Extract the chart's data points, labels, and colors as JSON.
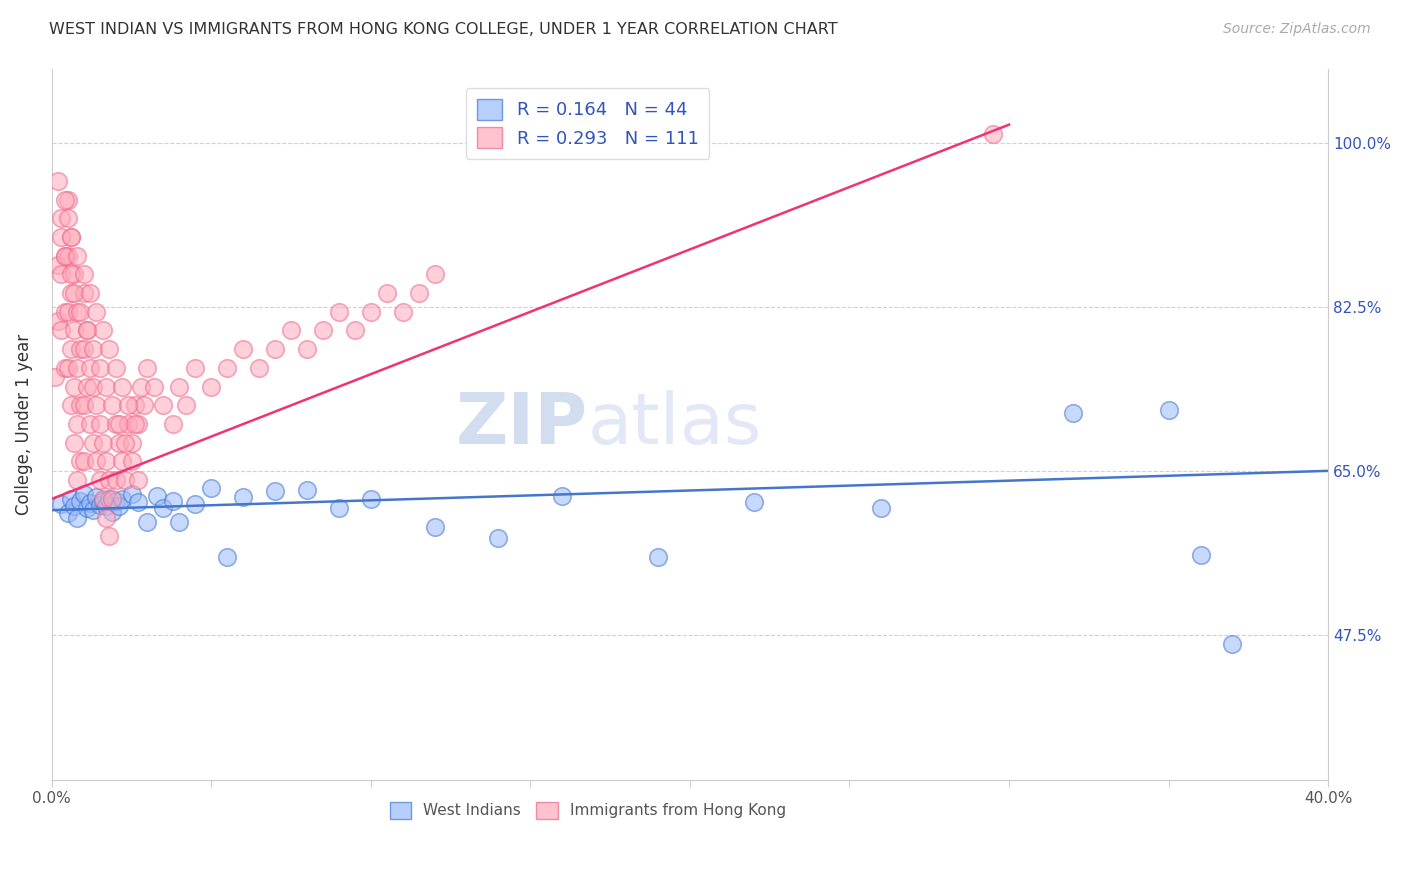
{
  "title": "WEST INDIAN VS IMMIGRANTS FROM HONG KONG COLLEGE, UNDER 1 YEAR CORRELATION CHART",
  "source": "Source: ZipAtlas.com",
  "ylabel": "College, Under 1 year",
  "xlim": [
    0.0,
    0.4
  ],
  "ylim": [
    0.32,
    1.08
  ],
  "xtick_positions": [
    0.0,
    0.05,
    0.1,
    0.15,
    0.2,
    0.25,
    0.3,
    0.35,
    0.4
  ],
  "xticklabels": [
    "0.0%",
    "",
    "",
    "",
    "",
    "",
    "",
    "",
    "40.0%"
  ],
  "ytick_positions": [
    0.475,
    0.65,
    0.825,
    1.0
  ],
  "yticklabels": [
    "47.5%",
    "65.0%",
    "82.5%",
    "100.0%"
  ],
  "blue_face": "#99bbff",
  "blue_edge": "#4477cc",
  "pink_face": "#ffaabb",
  "pink_edge": "#ee6688",
  "blue_line": "#4477cc",
  "pink_line": "#ee3377",
  "legend_text_color": "#3355bb",
  "right_axis_color": "#3355bb",
  "watermark1": "ZIP",
  "watermark2": "atlas",
  "blue_x": [
    0.003,
    0.005,
    0.006,
    0.007,
    0.008,
    0.009,
    0.01,
    0.011,
    0.012,
    0.013,
    0.014,
    0.015,
    0.016,
    0.017,
    0.018,
    0.019,
    0.02,
    0.021,
    0.022,
    0.025,
    0.027,
    0.03,
    0.033,
    0.035,
    0.038,
    0.04,
    0.045,
    0.05,
    0.055,
    0.06,
    0.07,
    0.08,
    0.09,
    0.1,
    0.12,
    0.14,
    0.16,
    0.19,
    0.22,
    0.26,
    0.32,
    0.35,
    0.36,
    0.37
  ],
  "blue_y": [
    0.615,
    0.605,
    0.62,
    0.612,
    0.6,
    0.618,
    0.625,
    0.61,
    0.616,
    0.608,
    0.622,
    0.614,
    0.618,
    0.612,
    0.62,
    0.606,
    0.618,
    0.612,
    0.62,
    0.625,
    0.617,
    0.595,
    0.623,
    0.61,
    0.618,
    0.595,
    0.615,
    0.632,
    0.558,
    0.622,
    0.628,
    0.63,
    0.61,
    0.62,
    0.59,
    0.578,
    0.623,
    0.558,
    0.617,
    0.61,
    0.712,
    0.715,
    0.56,
    0.465
  ],
  "pink_x": [
    0.001,
    0.002,
    0.002,
    0.003,
    0.003,
    0.003,
    0.004,
    0.004,
    0.004,
    0.005,
    0.005,
    0.005,
    0.005,
    0.006,
    0.006,
    0.006,
    0.006,
    0.007,
    0.007,
    0.007,
    0.007,
    0.008,
    0.008,
    0.008,
    0.008,
    0.009,
    0.009,
    0.009,
    0.01,
    0.01,
    0.01,
    0.01,
    0.011,
    0.011,
    0.012,
    0.012,
    0.013,
    0.013,
    0.014,
    0.014,
    0.015,
    0.015,
    0.016,
    0.016,
    0.017,
    0.017,
    0.018,
    0.018,
    0.019,
    0.02,
    0.02,
    0.021,
    0.022,
    0.023,
    0.024,
    0.025,
    0.026,
    0.027,
    0.028,
    0.029,
    0.03,
    0.032,
    0.035,
    0.038,
    0.04,
    0.042,
    0.045,
    0.05,
    0.055,
    0.06,
    0.065,
    0.07,
    0.075,
    0.08,
    0.085,
    0.09,
    0.095,
    0.1,
    0.105,
    0.11,
    0.115,
    0.12,
    0.002,
    0.003,
    0.004,
    0.004,
    0.005,
    0.006,
    0.006,
    0.007,
    0.008,
    0.009,
    0.01,
    0.011,
    0.012,
    0.013,
    0.014,
    0.015,
    0.016,
    0.017,
    0.018,
    0.019,
    0.02,
    0.021,
    0.022,
    0.023,
    0.024,
    0.025,
    0.026,
    0.027,
    0.295
  ],
  "pink_y": [
    0.75,
    0.87,
    0.81,
    0.92,
    0.86,
    0.8,
    0.88,
    0.82,
    0.76,
    0.94,
    0.88,
    0.82,
    0.76,
    0.9,
    0.84,
    0.78,
    0.72,
    0.86,
    0.8,
    0.74,
    0.68,
    0.82,
    0.76,
    0.7,
    0.64,
    0.78,
    0.72,
    0.66,
    0.84,
    0.78,
    0.72,
    0.66,
    0.8,
    0.74,
    0.76,
    0.7,
    0.74,
    0.68,
    0.72,
    0.66,
    0.7,
    0.64,
    0.68,
    0.62,
    0.66,
    0.6,
    0.64,
    0.58,
    0.62,
    0.7,
    0.64,
    0.68,
    0.66,
    0.64,
    0.7,
    0.68,
    0.72,
    0.7,
    0.74,
    0.72,
    0.76,
    0.74,
    0.72,
    0.7,
    0.74,
    0.72,
    0.76,
    0.74,
    0.76,
    0.78,
    0.76,
    0.78,
    0.8,
    0.78,
    0.8,
    0.82,
    0.8,
    0.82,
    0.84,
    0.82,
    0.84,
    0.86,
    0.96,
    0.9,
    0.94,
    0.88,
    0.92,
    0.86,
    0.9,
    0.84,
    0.88,
    0.82,
    0.86,
    0.8,
    0.84,
    0.78,
    0.82,
    0.76,
    0.8,
    0.74,
    0.78,
    0.72,
    0.76,
    0.7,
    0.74,
    0.68,
    0.72,
    0.66,
    0.7,
    0.64,
    1.01
  ],
  "blue_line_x0": 0.0,
  "blue_line_x1": 0.4,
  "blue_line_y0": 0.608,
  "blue_line_y1": 0.65,
  "pink_line_x0": 0.0,
  "pink_line_x1": 0.3,
  "pink_line_y0": 0.62,
  "pink_line_y1": 1.02
}
